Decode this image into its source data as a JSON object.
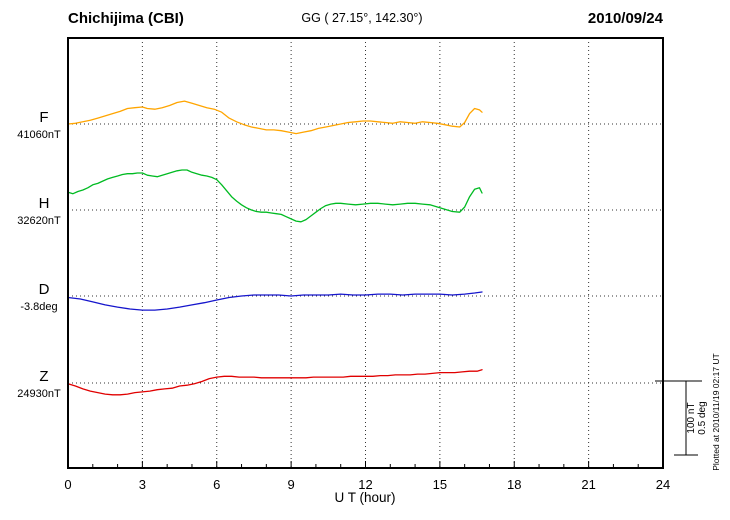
{
  "header": {
    "station": "Chichijima (CBI)",
    "coordinates": "GG ( 27.15°, 142.30°)",
    "date": "2010/09/24"
  },
  "x_axis": {
    "label": "U T (hour)",
    "ticks": [
      0,
      3,
      6,
      9,
      12,
      15,
      18,
      21,
      24
    ],
    "range": [
      0,
      24
    ]
  },
  "scale_bar": {
    "nt_label": "100 nT",
    "deg_label": "0.5 deg"
  },
  "footer_note": "Plotted at 2010/11/19 02:17 UT",
  "chart_data": {
    "type": "line",
    "title": "Chichijima (CBI) magnetogram",
    "date": "2010/09/24",
    "xlabel": "U T (hour)",
    "x_range_hours": [
      0,
      24
    ],
    "data_end_hour": 16.7,
    "grid": "dotted vertical lines every 3 hours, dotted horizontal line at each component baseline",
    "legend_position": "left-of-plot component labels",
    "scale_per_division": {
      "field_nT": 100,
      "declination_deg": 0.5
    },
    "series": [
      {
        "name": "F",
        "units": "nT",
        "baseline": 41060,
        "baseline_label": "41060nT",
        "color": "#FFA500",
        "points": [
          [
            0,
            0
          ],
          [
            0.3,
            1
          ],
          [
            0.6,
            3
          ],
          [
            0.9,
            5
          ],
          [
            1.2,
            8
          ],
          [
            1.5,
            11
          ],
          [
            1.8,
            14
          ],
          [
            2.1,
            17
          ],
          [
            2.4,
            21
          ],
          [
            2.7,
            22
          ],
          [
            3,
            23
          ],
          [
            3.2,
            21
          ],
          [
            3.5,
            20
          ],
          [
            3.8,
            22
          ],
          [
            4.1,
            25
          ],
          [
            4.4,
            29
          ],
          [
            4.7,
            31
          ],
          [
            5,
            28
          ],
          [
            5.3,
            25
          ],
          [
            5.6,
            22
          ],
          [
            5.9,
            20
          ],
          [
            6.2,
            16
          ],
          [
            6.5,
            8
          ],
          [
            6.8,
            3
          ],
          [
            7.1,
            -1
          ],
          [
            7.4,
            -4
          ],
          [
            7.7,
            -6
          ],
          [
            8,
            -8
          ],
          [
            8.3,
            -8
          ],
          [
            8.6,
            -9
          ],
          [
            8.9,
            -11
          ],
          [
            9.2,
            -13
          ],
          [
            9.5,
            -11
          ],
          [
            9.8,
            -9
          ],
          [
            10.1,
            -6
          ],
          [
            10.4,
            -4
          ],
          [
            10.7,
            -2
          ],
          [
            11,
            0
          ],
          [
            11.3,
            2
          ],
          [
            11.6,
            3
          ],
          [
            11.9,
            4
          ],
          [
            12.2,
            4
          ],
          [
            12.5,
            3
          ],
          [
            12.8,
            2
          ],
          [
            13.1,
            1
          ],
          [
            13.4,
            3
          ],
          [
            13.7,
            2
          ],
          [
            14,
            1
          ],
          [
            14.3,
            3
          ],
          [
            14.6,
            2
          ],
          [
            14.9,
            1
          ],
          [
            15.2,
            -1
          ],
          [
            15.5,
            -3
          ],
          [
            15.8,
            -4
          ],
          [
            16,
            2
          ],
          [
            16.2,
            14
          ],
          [
            16.4,
            21
          ],
          [
            16.6,
            19
          ],
          [
            16.7,
            16
          ]
        ]
      },
      {
        "name": "H",
        "units": "nT",
        "baseline": 32620,
        "baseline_label": "32620nT",
        "color": "#00BB22",
        "points": [
          [
            0,
            24
          ],
          [
            0.2,
            22
          ],
          [
            0.4,
            25
          ],
          [
            0.6,
            27
          ],
          [
            0.8,
            30
          ],
          [
            1,
            34
          ],
          [
            1.2,
            36
          ],
          [
            1.4,
            39
          ],
          [
            1.6,
            42
          ],
          [
            1.8,
            44
          ],
          [
            2,
            46
          ],
          [
            2.2,
            48
          ],
          [
            2.4,
            49
          ],
          [
            2.6,
            49
          ],
          [
            2.8,
            50
          ],
          [
            3,
            50
          ],
          [
            3.2,
            47
          ],
          [
            3.4,
            46
          ],
          [
            3.6,
            45
          ],
          [
            3.8,
            47
          ],
          [
            4,
            49
          ],
          [
            4.2,
            51
          ],
          [
            4.4,
            53
          ],
          [
            4.6,
            54
          ],
          [
            4.8,
            54
          ],
          [
            5,
            51
          ],
          [
            5.2,
            49
          ],
          [
            5.4,
            47
          ],
          [
            5.6,
            46
          ],
          [
            5.8,
            44
          ],
          [
            6,
            41
          ],
          [
            6.2,
            34
          ],
          [
            6.4,
            26
          ],
          [
            6.6,
            18
          ],
          [
            6.8,
            12
          ],
          [
            7,
            7
          ],
          [
            7.2,
            3
          ],
          [
            7.4,
            0
          ],
          [
            7.6,
            -2
          ],
          [
            7.8,
            -3
          ],
          [
            8,
            -3
          ],
          [
            8.2,
            -4
          ],
          [
            8.4,
            -5
          ],
          [
            8.6,
            -6
          ],
          [
            8.8,
            -9
          ],
          [
            9,
            -12
          ],
          [
            9.2,
            -15
          ],
          [
            9.4,
            -16
          ],
          [
            9.6,
            -13
          ],
          [
            9.8,
            -8
          ],
          [
            10,
            -3
          ],
          [
            10.2,
            2
          ],
          [
            10.4,
            6
          ],
          [
            10.6,
            8
          ],
          [
            10.8,
            9
          ],
          [
            11,
            9
          ],
          [
            11.3,
            8
          ],
          [
            11.6,
            7
          ],
          [
            11.9,
            8
          ],
          [
            12.2,
            9
          ],
          [
            12.5,
            9
          ],
          [
            12.8,
            8
          ],
          [
            13.1,
            7
          ],
          [
            13.4,
            8
          ],
          [
            13.7,
            9
          ],
          [
            14,
            9
          ],
          [
            14.3,
            8
          ],
          [
            14.6,
            7
          ],
          [
            14.9,
            4
          ],
          [
            15.2,
            1
          ],
          [
            15.5,
            -2
          ],
          [
            15.8,
            -3
          ],
          [
            16,
            4
          ],
          [
            16.2,
            18
          ],
          [
            16.4,
            28
          ],
          [
            16.6,
            30
          ],
          [
            16.7,
            23
          ]
        ]
      },
      {
        "name": "D",
        "units": "deg",
        "baseline": -3.8,
        "baseline_label": "-3.8deg",
        "color": "#1515CC",
        "points": [
          [
            0,
            -0.01
          ],
          [
            0.5,
            -0.02
          ],
          [
            1,
            -0.04
          ],
          [
            1.5,
            -0.06
          ],
          [
            2,
            -0.075
          ],
          [
            2.5,
            -0.088
          ],
          [
            3,
            -0.095
          ],
          [
            3.5,
            -0.095
          ],
          [
            4,
            -0.088
          ],
          [
            4.5,
            -0.075
          ],
          [
            5,
            -0.06
          ],
          [
            5.5,
            -0.045
          ],
          [
            6,
            -0.027
          ],
          [
            6.5,
            -0.01
          ],
          [
            7,
            0
          ],
          [
            7.5,
            0.007
          ],
          [
            8,
            0.007
          ],
          [
            8.5,
            0.007
          ],
          [
            9,
            0
          ],
          [
            9.5,
            0.007
          ],
          [
            10,
            0.007
          ],
          [
            10.5,
            0.007
          ],
          [
            11,
            0.013
          ],
          [
            11.5,
            0.007
          ],
          [
            12,
            0.007
          ],
          [
            12.5,
            0.013
          ],
          [
            13,
            0.013
          ],
          [
            13.5,
            0.007
          ],
          [
            14,
            0.013
          ],
          [
            14.5,
            0.013
          ],
          [
            15,
            0.013
          ],
          [
            15.5,
            0.007
          ],
          [
            16,
            0.013
          ],
          [
            16.4,
            0.02
          ],
          [
            16.7,
            0.027
          ]
        ]
      },
      {
        "name": "Z",
        "units": "nT",
        "baseline": 24930,
        "baseline_label": "24930nT",
        "color": "#E00000",
        "points": [
          [
            0,
            -1
          ],
          [
            0.3,
            -4
          ],
          [
            0.6,
            -8
          ],
          [
            0.9,
            -11
          ],
          [
            1.2,
            -13
          ],
          [
            1.5,
            -15
          ],
          [
            1.8,
            -16
          ],
          [
            2.1,
            -16
          ],
          [
            2.4,
            -15
          ],
          [
            2.7,
            -13
          ],
          [
            3,
            -12
          ],
          [
            3.3,
            -11
          ],
          [
            3.6,
            -9
          ],
          [
            3.9,
            -8
          ],
          [
            4.2,
            -7
          ],
          [
            4.5,
            -4
          ],
          [
            4.8,
            -3
          ],
          [
            5.1,
            -1
          ],
          [
            5.4,
            2
          ],
          [
            5.7,
            6
          ],
          [
            6,
            8
          ],
          [
            6.3,
            9
          ],
          [
            6.6,
            9
          ],
          [
            6.9,
            8
          ],
          [
            7.2,
            8
          ],
          [
            7.5,
            8
          ],
          [
            7.8,
            7
          ],
          [
            8.1,
            7
          ],
          [
            8.4,
            7
          ],
          [
            8.7,
            7
          ],
          [
            9,
            7
          ],
          [
            9.3,
            7
          ],
          [
            9.6,
            7
          ],
          [
            9.9,
            8
          ],
          [
            10.2,
            8
          ],
          [
            10.5,
            8
          ],
          [
            10.8,
            8
          ],
          [
            11.1,
            8
          ],
          [
            11.4,
            9
          ],
          [
            11.7,
            9
          ],
          [
            12,
            9
          ],
          [
            12.3,
            9
          ],
          [
            12.6,
            10
          ],
          [
            12.9,
            10
          ],
          [
            13.2,
            11
          ],
          [
            13.5,
            11
          ],
          [
            13.8,
            11
          ],
          [
            14.1,
            12
          ],
          [
            14.4,
            12
          ],
          [
            14.7,
            13
          ],
          [
            15,
            14
          ],
          [
            15.3,
            14
          ],
          [
            15.6,
            14
          ],
          [
            15.9,
            15
          ],
          [
            16.2,
            16
          ],
          [
            16.5,
            16
          ],
          [
            16.7,
            18
          ]
        ]
      }
    ]
  }
}
